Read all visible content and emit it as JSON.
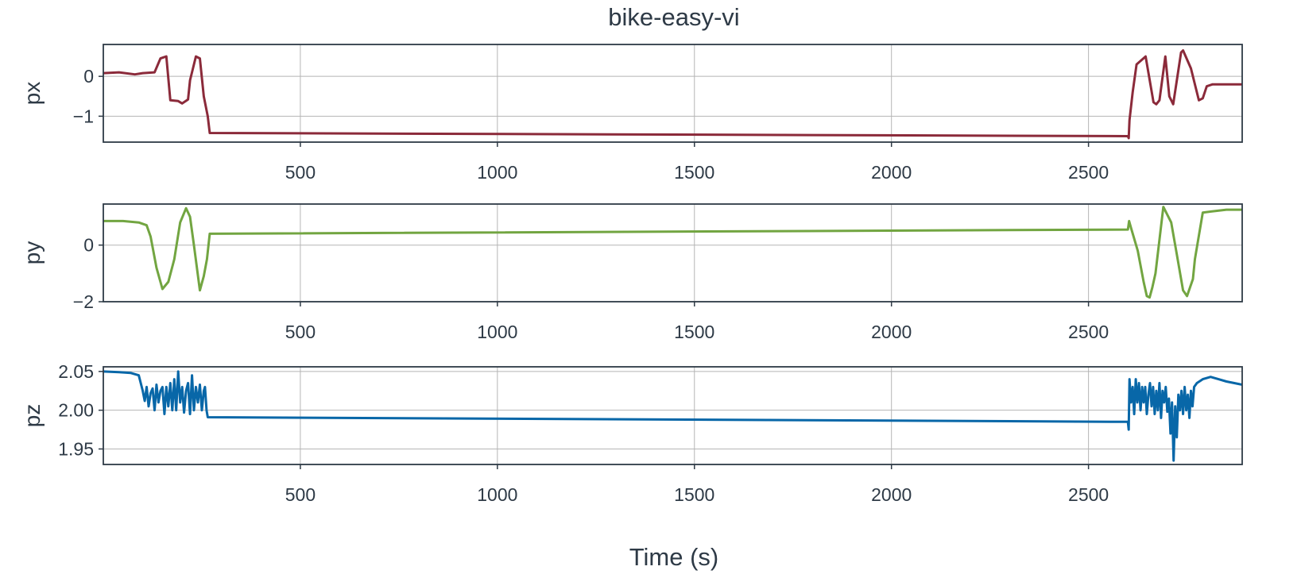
{
  "title": "bike-easy-vi",
  "xlabel": "Time (s)",
  "chart_data": [
    {
      "type": "line",
      "ylabel": "px",
      "xlim": [
        0,
        2890
      ],
      "ylim": [
        -1.65,
        0.8
      ],
      "xticks": [
        500,
        1000,
        1500,
        2000,
        2500
      ],
      "yticks": [
        0,
        -1
      ],
      "ytick_labels": [
        "0",
        "−1"
      ],
      "grid": true,
      "color": "#8b2a3a",
      "x": [
        0,
        40,
        80,
        100,
        130,
        145,
        160,
        170,
        190,
        200,
        215,
        220,
        235,
        245,
        255,
        265,
        270,
        2600,
        2602,
        2604,
        2612,
        2622,
        2645,
        2665,
        2672,
        2680,
        2695,
        2705,
        2715,
        2735,
        2740,
        2760,
        2780,
        2790,
        2800,
        2815,
        2850,
        2890
      ],
      "y": [
        0.08,
        0.1,
        0.05,
        0.08,
        0.1,
        0.45,
        0.5,
        -0.6,
        -0.62,
        -0.68,
        -0.58,
        -0.1,
        0.5,
        0.45,
        -0.5,
        -1.0,
        -1.42,
        -1.5,
        -1.55,
        -1.1,
        -0.4,
        0.3,
        0.5,
        -0.65,
        -0.7,
        -0.6,
        0.5,
        -0.5,
        -0.7,
        0.6,
        0.65,
        0.2,
        -0.6,
        -0.55,
        -0.25,
        -0.2,
        -0.2,
        -0.2
      ]
    },
    {
      "type": "line",
      "ylabel": "py",
      "xlim": [
        0,
        2890
      ],
      "ylim": [
        -2.0,
        1.45
      ],
      "xticks": [
        500,
        1000,
        1500,
        2000,
        2500
      ],
      "yticks": [
        0,
        -2
      ],
      "ytick_labels": [
        "0",
        "−2"
      ],
      "grid": true,
      "color": "#72a541",
      "x": [
        0,
        50,
        90,
        110,
        120,
        135,
        150,
        165,
        180,
        195,
        210,
        220,
        230,
        245,
        255,
        263,
        270,
        2600,
        2603,
        2608,
        2625,
        2640,
        2648,
        2655,
        2662,
        2670,
        2690,
        2710,
        2725,
        2740,
        2750,
        2765,
        2770,
        2790,
        2820,
        2850,
        2890
      ],
      "y": [
        0.85,
        0.85,
        0.8,
        0.7,
        0.3,
        -0.8,
        -1.55,
        -1.3,
        -0.5,
        0.8,
        1.3,
        1.0,
        0.0,
        -1.6,
        -1.1,
        -0.5,
        0.4,
        0.55,
        0.85,
        0.6,
        -0.2,
        -1.3,
        -1.8,
        -1.85,
        -1.5,
        -1.0,
        1.35,
        0.8,
        -0.4,
        -1.6,
        -1.8,
        -1.2,
        -0.5,
        1.15,
        1.2,
        1.25,
        1.25
      ]
    },
    {
      "type": "line",
      "ylabel": "pz",
      "xlim": [
        0,
        2890
      ],
      "ylim": [
        1.93,
        2.056
      ],
      "xticks": [
        500,
        1000,
        1500,
        2000,
        2500
      ],
      "yticks": [
        2.05,
        2.0,
        1.95
      ],
      "ytick_labels": [
        "2.05",
        "2.00",
        "1.95"
      ],
      "grid": true,
      "color": "#0867a8",
      "x": [
        0,
        40,
        70,
        90,
        95,
        100,
        105,
        110,
        115,
        120,
        125,
        130,
        135,
        140,
        145,
        150,
        155,
        160,
        165,
        170,
        175,
        180,
        185,
        190,
        195,
        200,
        205,
        210,
        215,
        220,
        225,
        230,
        235,
        240,
        245,
        250,
        255,
        258,
        262,
        265,
        2600,
        2602,
        2604,
        2608,
        2612,
        2616,
        2620,
        2624,
        2628,
        2632,
        2636,
        2640,
        2644,
        2648,
        2652,
        2656,
        2660,
        2664,
        2668,
        2672,
        2676,
        2680,
        2684,
        2688,
        2692,
        2696,
        2700,
        2704,
        2708,
        2712,
        2716,
        2720,
        2724,
        2728,
        2732,
        2736,
        2740,
        2744,
        2748,
        2752,
        2756,
        2760,
        2764,
        2768,
        2775,
        2790,
        2810,
        2830,
        2850,
        2870,
        2890
      ],
      "y": [
        2.05,
        2.049,
        2.048,
        2.045,
        2.035,
        2.025,
        2.012,
        2.03,
        2.005,
        2.022,
        2.028,
        2.0,
        2.033,
        2.01,
        2.025,
        2.03,
        1.995,
        2.03,
        2.005,
        2.035,
        2.0,
        2.04,
        2.0,
        2.05,
        2.01,
        2.03,
        1.997,
        2.025,
        2.035,
        1.995,
        2.045,
        2.0,
        2.03,
        2.01,
        2.033,
        2.0,
        2.025,
        2.03,
        2.0,
        1.991,
        1.985,
        1.975,
        2.04,
        2.01,
        2.03,
        1.995,
        2.04,
        2.01,
        2.035,
        2.0,
        2.03,
        2.01,
        2.03,
        1.995,
        2.02,
        2.035,
        2.005,
        2.03,
        1.995,
        2.025,
        2.0,
        2.035,
        1.99,
        2.025,
        2.01,
        2.03,
        1.998,
        2.015,
        1.97,
        2.01,
        1.935,
        2.005,
        1.965,
        2.02,
        2.0,
        2.025,
        1.995,
        2.03,
        2.0,
        2.02,
        1.99,
        2.025,
        2.005,
        2.03,
        2.035,
        2.04,
        2.043,
        2.04,
        2.037,
        2.035,
        2.033
      ]
    }
  ]
}
